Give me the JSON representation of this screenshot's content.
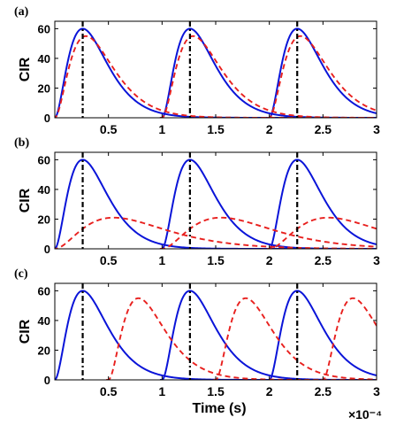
{
  "chart_data": [
    {
      "type": "line",
      "panel_label": "(a)",
      "ylabel": "CIR",
      "xlabel": "",
      "xlim": [
        0,
        3
      ],
      "ylim": [
        0,
        65
      ],
      "x_ticks": [
        0.5,
        1,
        1.5,
        2,
        2.5,
        3
      ],
      "x_tick_labels": [
        "0.5",
        "1",
        "1.5",
        "2",
        "2.5",
        "3"
      ],
      "y_ticks": [
        0,
        20,
        40,
        60
      ],
      "y_tick_labels": [
        "0",
        "20",
        "40",
        "60"
      ],
      "reference_lines_x": [
        0.26,
        1.26,
        2.26
      ],
      "series": [
        {
          "style": "solid",
          "color": "#0a14d8",
          "pulses": [
            {
              "t0": 0.0,
              "rise": 0.26,
              "peak": 60
            },
            {
              "t0": 1.0,
              "rise": 0.26,
              "peak": 60
            },
            {
              "t0": 2.0,
              "rise": 0.26,
              "peak": 60
            }
          ]
        },
        {
          "style": "dashed",
          "color": "#e8201e",
          "pulses": [
            {
              "t0": 0.0,
              "rise": 0.29,
              "peak": 55
            },
            {
              "t0": 1.0,
              "rise": 0.29,
              "peak": 55
            },
            {
              "t0": 2.0,
              "rise": 0.29,
              "peak": 55
            }
          ]
        }
      ]
    },
    {
      "type": "line",
      "panel_label": "(b)",
      "ylabel": "CIR",
      "xlabel": "",
      "xlim": [
        0,
        3
      ],
      "ylim": [
        0,
        65
      ],
      "x_ticks": [
        0.5,
        1,
        1.5,
        2,
        2.5,
        3
      ],
      "x_tick_labels": [
        "0.5",
        "1",
        "1.5",
        "2",
        "2.5",
        "3"
      ],
      "y_ticks": [
        0,
        20,
        40,
        60
      ],
      "y_tick_labels": [
        "0",
        "20",
        "40",
        "60"
      ],
      "reference_lines_x": [
        0.26,
        1.26,
        2.26
      ],
      "series": [
        {
          "style": "solid",
          "color": "#0a14d8",
          "pulses": [
            {
              "t0": 0.0,
              "rise": 0.26,
              "peak": 60
            },
            {
              "t0": 1.0,
              "rise": 0.26,
              "peak": 60
            },
            {
              "t0": 2.0,
              "rise": 0.26,
              "peak": 60
            }
          ]
        },
        {
          "style": "dashed",
          "color": "#e8201e",
          "pulses": [
            {
              "t0": 0.0,
              "rise": 0.55,
              "peak": 21
            },
            {
              "t0": 1.0,
              "rise": 0.55,
              "peak": 21
            },
            {
              "t0": 2.0,
              "rise": 0.55,
              "peak": 21
            }
          ]
        }
      ]
    },
    {
      "type": "line",
      "panel_label": "(c)",
      "ylabel": "CIR",
      "xlabel": "Time (s)",
      "x_multiplier": "×10⁻⁴",
      "xlim": [
        0,
        3
      ],
      "ylim": [
        0,
        65
      ],
      "x_ticks": [
        0.5,
        1,
        1.5,
        2,
        2.5,
        3
      ],
      "x_tick_labels": [
        "0.5",
        "1",
        "1.5",
        "2",
        "2.5",
        "3"
      ],
      "y_ticks": [
        0,
        20,
        40,
        60
      ],
      "y_tick_labels": [
        "0",
        "20",
        "40",
        "60"
      ],
      "reference_lines_x": [
        0.26,
        1.26,
        2.26
      ],
      "series": [
        {
          "style": "solid",
          "color": "#0a14d8",
          "pulses": [
            {
              "t0": 0.0,
              "rise": 0.26,
              "peak": 60
            },
            {
              "t0": 1.0,
              "rise": 0.26,
              "peak": 60
            },
            {
              "t0": 2.0,
              "rise": 0.26,
              "peak": 60
            }
          ]
        },
        {
          "style": "dashed",
          "color": "#e8201e",
          "pulses": [
            {
              "t0": 0.5,
              "rise": 0.28,
              "peak": 55
            },
            {
              "t0": 1.5,
              "rise": 0.28,
              "peak": 55
            },
            {
              "t0": 2.5,
              "rise": 0.28,
              "peak": 55
            }
          ]
        }
      ]
    }
  ]
}
